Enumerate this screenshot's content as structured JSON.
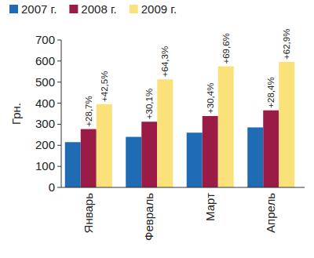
{
  "chart_data": {
    "type": "bar",
    "y_label": "Грн.",
    "categories": [
      "Январь",
      "Февраль",
      "Март",
      "Апрель"
    ],
    "series": [
      {
        "name": "2007 г.",
        "color": "#1f6cb5",
        "values": [
          215,
          240,
          260,
          285
        ]
      },
      {
        "name": "2008 г.",
        "color": "#9b1b47",
        "values": [
          277,
          312,
          339,
          366
        ],
        "annotations": [
          "+28,7%",
          "+30,1%",
          "+30,4%",
          "+28,4%"
        ]
      },
      {
        "name": "2009 г.",
        "color": "#fbe17a",
        "values": [
          395,
          513,
          575,
          596
        ],
        "annotations": [
          "+42,5%",
          "+64,3%",
          "+69,6%",
          "+62,9%"
        ]
      }
    ],
    "ylim": [
      0,
      700
    ],
    "yticks": [
      0,
      100,
      200,
      300,
      400,
      500,
      600,
      700
    ],
    "legend": "top",
    "grid": false
  }
}
